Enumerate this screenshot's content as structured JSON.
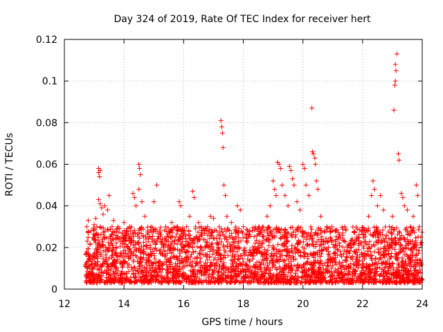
{
  "chart_data": {
    "type": "scatter",
    "title": "Day 324 of 2019, Rate Of TEC Index for receiver hert",
    "xlabel": "GPS time / hours",
    "ylabel": "ROTI / TECUs",
    "xlim": [
      12,
      24
    ],
    "ylim": [
      0,
      0.12
    ],
    "xticks": [
      "12",
      "14",
      "16",
      "18",
      "20",
      "22",
      "24"
    ],
    "yticks": [
      "0",
      "0.02",
      "0.04",
      "0.06",
      "0.08",
      "0.1",
      "0.12"
    ],
    "grid": true,
    "marker": "+",
    "color": "#ff0000",
    "series": [
      {
        "name": "ROTI",
        "points": [
          [
            12.75,
            0.03
          ],
          [
            12.8,
            0.033
          ],
          [
            12.9,
            0.028
          ],
          [
            13.0,
            0.031
          ],
          [
            13.05,
            0.034
          ],
          [
            13.15,
            0.058
          ],
          [
            13.15,
            0.056
          ],
          [
            13.18,
            0.054
          ],
          [
            13.2,
            0.057
          ],
          [
            13.15,
            0.043
          ],
          [
            13.2,
            0.041
          ],
          [
            13.25,
            0.039
          ],
          [
            13.3,
            0.036
          ],
          [
            13.35,
            0.04
          ],
          [
            13.45,
            0.038
          ],
          [
            13.5,
            0.045
          ],
          [
            13.6,
            0.03
          ],
          [
            13.65,
            0.033
          ],
          [
            13.8,
            0.03
          ],
          [
            13.9,
            0.025
          ],
          [
            14.0,
            0.032
          ],
          [
            14.1,
            0.028
          ],
          [
            14.2,
            0.03
          ],
          [
            14.3,
            0.046
          ],
          [
            14.35,
            0.044
          ],
          [
            14.4,
            0.04
          ],
          [
            14.5,
            0.06
          ],
          [
            14.52,
            0.058
          ],
          [
            14.55,
            0.055
          ],
          [
            14.5,
            0.048
          ],
          [
            14.6,
            0.042
          ],
          [
            14.7,
            0.035
          ],
          [
            14.9,
            0.03
          ],
          [
            15.0,
            0.042
          ],
          [
            15.1,
            0.05
          ],
          [
            15.2,
            0.028
          ],
          [
            15.4,
            0.03
          ],
          [
            15.5,
            0.025
          ],
          [
            15.6,
            0.032
          ],
          [
            15.8,
            0.03
          ],
          [
            15.85,
            0.042
          ],
          [
            15.9,
            0.04
          ],
          [
            16.0,
            0.028
          ],
          [
            16.1,
            0.03
          ],
          [
            16.2,
            0.035
          ],
          [
            16.3,
            0.047
          ],
          [
            16.35,
            0.044
          ],
          [
            16.4,
            0.03
          ],
          [
            16.5,
            0.032
          ],
          [
            16.6,
            0.027
          ],
          [
            16.8,
            0.03
          ],
          [
            16.9,
            0.035
          ],
          [
            17.0,
            0.034
          ],
          [
            17.1,
            0.028
          ],
          [
            17.25,
            0.081
          ],
          [
            17.28,
            0.078
          ],
          [
            17.3,
            0.075
          ],
          [
            17.32,
            0.068
          ],
          [
            17.35,
            0.05
          ],
          [
            17.4,
            0.045
          ],
          [
            17.45,
            0.035
          ],
          [
            17.6,
            0.032
          ],
          [
            17.8,
            0.04
          ],
          [
            17.9,
            0.038
          ],
          [
            18.0,
            0.03
          ],
          [
            18.1,
            0.025
          ],
          [
            18.3,
            0.028
          ],
          [
            18.5,
            0.022
          ],
          [
            18.7,
            0.028
          ],
          [
            18.8,
            0.035
          ],
          [
            18.9,
            0.04
          ],
          [
            19.0,
            0.052
          ],
          [
            19.05,
            0.048
          ],
          [
            19.1,
            0.045
          ],
          [
            19.15,
            0.061
          ],
          [
            19.2,
            0.06
          ],
          [
            19.25,
            0.058
          ],
          [
            19.3,
            0.05
          ],
          [
            19.4,
            0.045
          ],
          [
            19.5,
            0.04
          ],
          [
            19.55,
            0.059
          ],
          [
            19.6,
            0.057
          ],
          [
            19.65,
            0.053
          ],
          [
            19.7,
            0.05
          ],
          [
            19.8,
            0.042
          ],
          [
            19.9,
            0.038
          ],
          [
            20.0,
            0.06
          ],
          [
            20.05,
            0.058
          ],
          [
            20.1,
            0.05
          ],
          [
            20.2,
            0.045
          ],
          [
            20.3,
            0.087
          ],
          [
            20.32,
            0.066
          ],
          [
            20.35,
            0.065
          ],
          [
            20.4,
            0.063
          ],
          [
            20.42,
            0.06
          ],
          [
            20.45,
            0.052
          ],
          [
            20.5,
            0.048
          ],
          [
            20.6,
            0.035
          ],
          [
            20.8,
            0.03
          ],
          [
            21.0,
            0.028
          ],
          [
            21.2,
            0.025
          ],
          [
            21.4,
            0.03
          ],
          [
            21.6,
            0.022
          ],
          [
            21.8,
            0.025
          ],
          [
            22.0,
            0.028
          ],
          [
            22.2,
            0.035
          ],
          [
            22.3,
            0.045
          ],
          [
            22.35,
            0.052
          ],
          [
            22.4,
            0.048
          ],
          [
            22.5,
            0.04
          ],
          [
            22.6,
            0.045
          ],
          [
            22.7,
            0.038
          ],
          [
            22.9,
            0.03
          ],
          [
            23.0,
            0.035
          ],
          [
            23.05,
            0.086
          ],
          [
            23.08,
            0.098
          ],
          [
            23.1,
            0.108
          ],
          [
            23.12,
            0.105
          ],
          [
            23.15,
            0.113
          ],
          [
            23.1,
            0.1
          ],
          [
            23.2,
            0.065
          ],
          [
            23.22,
            0.062
          ],
          [
            23.3,
            0.046
          ],
          [
            23.35,
            0.044
          ],
          [
            23.4,
            0.04
          ],
          [
            23.5,
            0.038
          ],
          [
            23.6,
            0.03
          ],
          [
            23.7,
            0.035
          ],
          [
            23.8,
            0.05
          ],
          [
            23.85,
            0.045
          ],
          [
            23.9,
            0.03
          ],
          [
            23.95,
            0.025
          ]
        ]
      }
    ],
    "dense_band": {
      "description": "continuous cloud of points between 12.7 and 24 hours",
      "x_range": [
        12.7,
        24
      ],
      "y_range": [
        0.003,
        0.03
      ]
    }
  }
}
